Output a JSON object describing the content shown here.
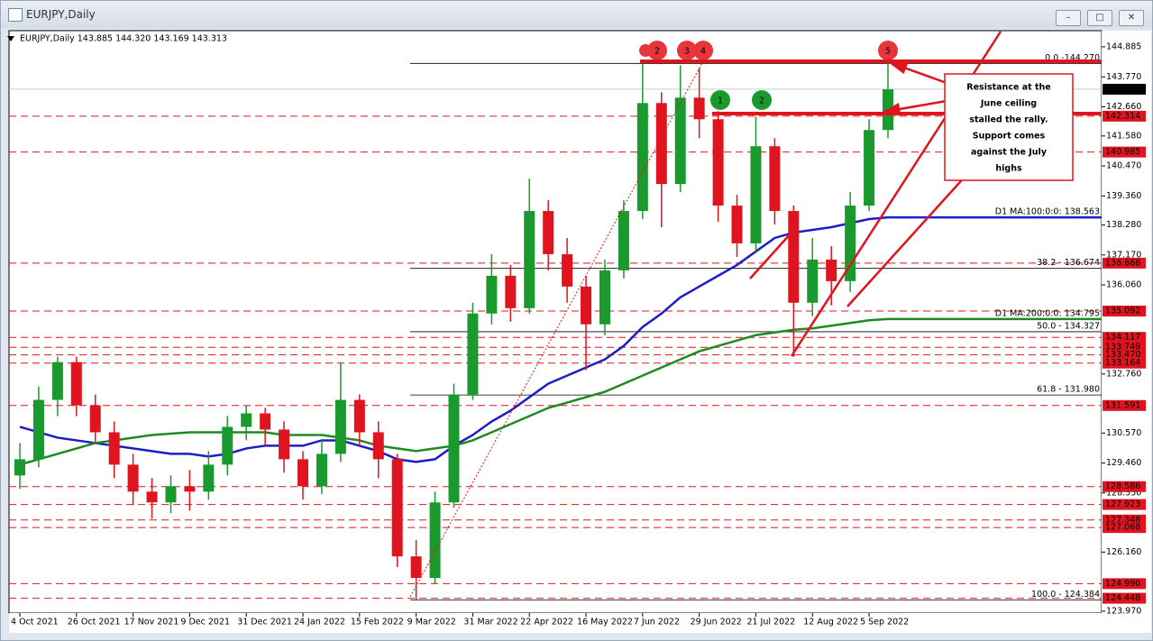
{
  "window_title": "EURJPY,Daily",
  "chart_data": {
    "type": "candlestick",
    "header": "EURJPY,Daily  143.885 144.320 143.169 143.313",
    "categories": [
      "4 Oct 2021",
      null,
      null,
      "26 Oct 2021",
      null,
      null,
      "17 Nov 2021",
      null,
      null,
      "9 Dec 2021",
      null,
      null,
      "31 Dec 2021",
      null,
      null,
      "24 Jan 2022",
      null,
      null,
      "15 Feb 2022",
      null,
      null,
      "9 Mar 2022",
      null,
      null,
      "31 Mar 2022",
      null,
      null,
      "22 Apr 2022",
      null,
      null,
      "16 May 2022",
      null,
      null,
      "7 Jun 2022",
      null,
      null,
      "29 Jun 2022",
      null,
      null,
      "21 Jul 2022",
      null,
      null,
      "12 Aug 2022",
      null,
      null,
      "5 Sep 2022",
      null
    ],
    "open": [
      129.0,
      129.6,
      131.8,
      133.2,
      131.6,
      130.6,
      129.4,
      128.4,
      128.0,
      128.6,
      128.4,
      129.4,
      130.8,
      131.3,
      130.7,
      129.6,
      128.6,
      129.8,
      131.8,
      130.6,
      129.6,
      126.0,
      125.2,
      128.0,
      132.0,
      135.0,
      136.4,
      135.2,
      138.8,
      137.2,
      136.0,
      134.6,
      136.6,
      138.8,
      142.8,
      139.8,
      143.0,
      142.2,
      139.0,
      137.6,
      141.2,
      138.8,
      135.4,
      137.0,
      136.2,
      139.0,
      141.8
    ],
    "high": [
      130.2,
      132.3,
      133.4,
      133.4,
      132.0,
      131.0,
      129.8,
      128.9,
      129.0,
      129.2,
      129.9,
      131.2,
      131.6,
      131.5,
      131.0,
      129.9,
      130.3,
      133.2,
      132.0,
      131.0,
      129.8,
      126.6,
      128.4,
      132.4,
      135.4,
      137.2,
      136.8,
      140.0,
      139.2,
      137.8,
      136.4,
      137.0,
      139.2,
      144.27,
      143.2,
      144.2,
      144.1,
      142.5,
      139.4,
      142.3,
      141.5,
      139.0,
      137.8,
      137.5,
      139.5,
      142.2,
      144.32
    ],
    "low": [
      128.5,
      129.3,
      131.2,
      131.2,
      130.2,
      128.9,
      127.9,
      127.4,
      127.6,
      127.7,
      128.1,
      129.0,
      130.3,
      130.1,
      129.1,
      128.1,
      128.3,
      129.5,
      130.1,
      128.9,
      125.6,
      124.4,
      125.0,
      127.8,
      131.8,
      134.6,
      134.7,
      135.0,
      136.6,
      135.4,
      132.9,
      134.2,
      136.3,
      138.5,
      138.2,
      139.5,
      141.5,
      138.4,
      137.1,
      137.3,
      138.3,
      133.4,
      134.9,
      135.3,
      135.8,
      138.8,
      141.5
    ],
    "close": [
      129.6,
      131.8,
      133.2,
      131.6,
      130.6,
      129.4,
      128.4,
      128.0,
      128.6,
      128.4,
      129.4,
      130.8,
      131.3,
      130.7,
      129.6,
      128.6,
      129.8,
      131.8,
      130.6,
      129.6,
      126.0,
      125.2,
      128.0,
      132.0,
      135.0,
      136.4,
      135.2,
      138.8,
      137.2,
      136.0,
      134.6,
      136.6,
      138.8,
      142.8,
      139.8,
      143.0,
      142.2,
      139.0,
      137.6,
      141.2,
      138.8,
      135.4,
      137.0,
      136.2,
      139.0,
      141.8,
      143.313
    ],
    "up_color": "#1a9a2e",
    "down_color": "#e0141e",
    "ma_lines": [
      {
        "label": "D1 MA:100:0:0: 138.563",
        "color": "#1d1dc8",
        "values": [
          130.8,
          130.6,
          130.4,
          130.3,
          130.2,
          130.1,
          130.0,
          129.9,
          129.8,
          129.8,
          129.7,
          129.8,
          130.0,
          130.1,
          130.1,
          130.1,
          130.3,
          130.3,
          130.1,
          129.9,
          129.6,
          129.5,
          129.6,
          130.1,
          130.5,
          131.0,
          131.4,
          131.9,
          132.4,
          132.7,
          133.0,
          133.3,
          133.8,
          134.5,
          135.0,
          135.6,
          136.0,
          136.4,
          136.8,
          137.3,
          137.8,
          138.0,
          138.1,
          138.2,
          138.35,
          138.5,
          138.563
        ]
      },
      {
        "label": "D1 MA:200:0:0: 134.795",
        "color": "#1f8a1f",
        "values": [
          129.4,
          129.6,
          129.8,
          130.0,
          130.2,
          130.3,
          130.4,
          130.5,
          130.55,
          130.6,
          130.6,
          130.6,
          130.6,
          130.6,
          130.5,
          130.5,
          130.5,
          130.4,
          130.3,
          130.1,
          130.0,
          129.9,
          130.0,
          130.1,
          130.3,
          130.6,
          130.9,
          131.2,
          131.5,
          131.7,
          131.9,
          132.1,
          132.4,
          132.7,
          133.0,
          133.3,
          133.6,
          133.8,
          134.0,
          134.2,
          134.3,
          134.4,
          134.45,
          134.55,
          134.65,
          134.75,
          134.795
        ]
      }
    ],
    "ylim": [
      123.9,
      145.45
    ],
    "yticks": [
      {
        "value": 144.885,
        "label": "144.885"
      },
      {
        "value": 143.77,
        "label": "143.770"
      },
      {
        "value": 142.66,
        "label": "142.660"
      },
      {
        "value": 141.58,
        "label": "141.580"
      },
      {
        "value": 140.47,
        "label": "140.470"
      },
      {
        "value": 139.36,
        "label": "139.360"
      },
      {
        "value": 138.28,
        "label": "138.280"
      },
      {
        "value": 137.17,
        "label": "137.170"
      },
      {
        "value": 136.06,
        "label": "136.060"
      },
      {
        "value": 132.76,
        "label": "132.760"
      },
      {
        "value": 130.57,
        "label": "130.570"
      },
      {
        "value": 129.46,
        "label": "129.460"
      },
      {
        "value": 128.35,
        "label": "128.350"
      },
      {
        "value": 126.16,
        "label": "126.160"
      },
      {
        "value": 123.97,
        "label": "123.970"
      }
    ],
    "levels": [
      142.314,
      140.985,
      136.868,
      135.092,
      134.117,
      133.749,
      {
        "value": 133.47,
        "label": "133.470"
      },
      133.164,
      131.591,
      128.586,
      127.923,
      127.348,
      127.068,
      {
        "value": 124.99,
        "label": "124.990"
      },
      124.448
    ],
    "level_color": "#e0141e",
    "current_price": 143.313,
    "fib_levels": [
      {
        "value": 144.27,
        "label": "0.0 -144.270"
      },
      {
        "value": 136.674,
        "label": "38.2 - 136.674"
      },
      {
        "value": 134.327,
        "label": "50.0 - 134.327"
      },
      {
        "value": 131.98,
        "label": "61.8 - 131.980"
      },
      {
        "value": 124.384,
        "label": "100.0 - 124.384"
      }
    ],
    "markers": [
      {
        "text": "2",
        "color": "#e8353b"
      },
      {
        "text": "3",
        "color": "#e8353b"
      },
      {
        "text": "4",
        "color": "#e8353b"
      },
      {
        "text": "5",
        "color": "#e8353b"
      },
      {
        "text": "1",
        "color": "#1a9a2e"
      },
      {
        "text": "2",
        "color": "#1a9a2e"
      }
    ],
    "callout": [
      "Resistance at the",
      "June ceiling",
      "stalled the rally.",
      "Support comes",
      "against the July",
      "highs"
    ]
  }
}
